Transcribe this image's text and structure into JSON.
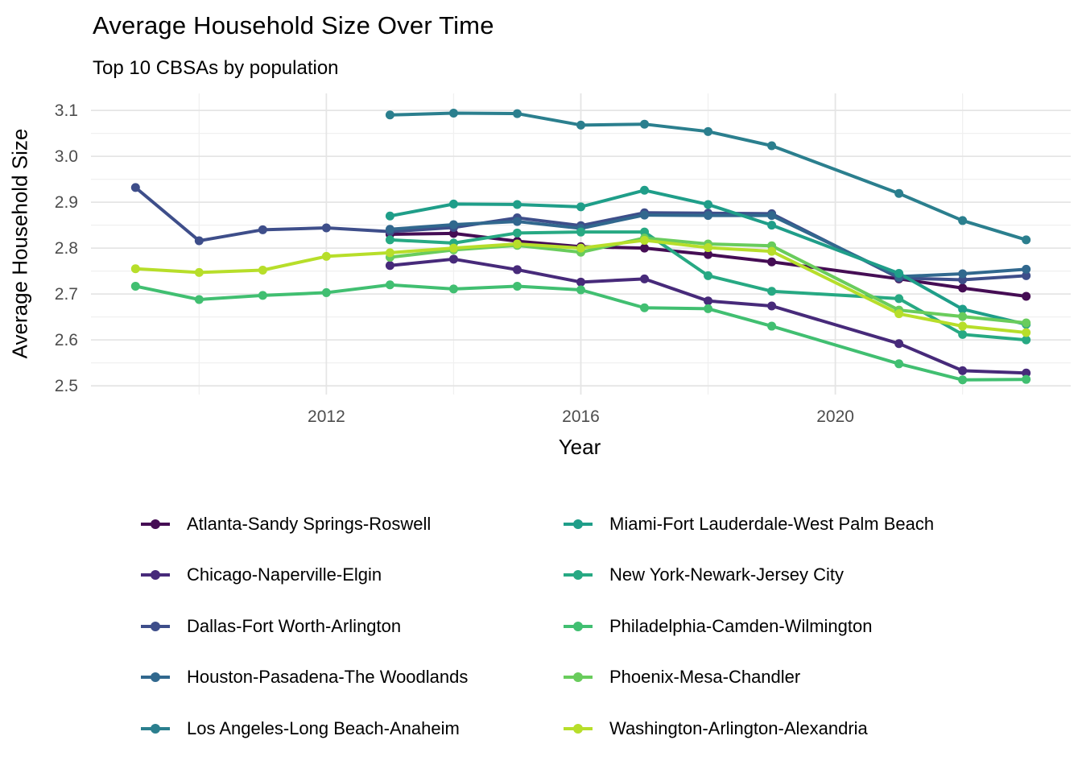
{
  "header": {
    "title": "Average Household Size Over Time",
    "subtitle": "Top 10 CBSAs by population"
  },
  "axes": {
    "x_label": "Year",
    "y_label": "Average Household Size",
    "x_tick_labels": [
      "2012",
      "2016",
      "2020"
    ],
    "y_tick_labels": [
      "2.5",
      "2.6",
      "2.7",
      "2.8",
      "2.9",
      "3.0",
      "3.1"
    ],
    "tick_color": "#4d4d4d",
    "grid_major_color": "#e5e5e5",
    "grid_minor_color": "#f0f0f0"
  },
  "chart_data": {
    "type": "line",
    "title": "Average Household Size Over Time",
    "subtitle": "Top 10 CBSAs by population",
    "xlabel": "Year",
    "ylabel": "Average Household Size",
    "xlim": [
      2008.3,
      2023.7
    ],
    "ylim": [
      2.481,
      3.137
    ],
    "x_ticks": [
      2012,
      2016,
      2020
    ],
    "y_ticks": [
      2.5,
      2.6,
      2.7,
      2.8,
      2.9,
      3.0,
      3.1
    ],
    "x_minor": [
      2010,
      2014,
      2018,
      2022
    ],
    "y_minor": [
      2.55,
      2.65,
      2.75,
      2.85,
      2.95,
      3.05
    ],
    "grid": true,
    "legend_position": "bottom-two-columns",
    "missing_years": [
      2020
    ],
    "series": [
      {
        "name": "Atlanta-Sandy Springs-Roswell",
        "color": "#450d54",
        "points": [
          [
            2013,
            2.83
          ],
          [
            2014,
            2.832
          ],
          [
            2015,
            2.815
          ],
          [
            2016,
            2.803
          ],
          [
            2017,
            2.8
          ],
          [
            2018,
            2.786
          ],
          [
            2019,
            2.77
          ],
          [
            2021,
            2.733
          ],
          [
            2022,
            2.713
          ],
          [
            2023,
            2.695
          ]
        ]
      },
      {
        "name": "Chicago-Naperville-Elgin",
        "color": "#472a7a",
        "points": [
          [
            2013,
            2.762
          ],
          [
            2014,
            2.776
          ],
          [
            2015,
            2.753
          ],
          [
            2016,
            2.726
          ],
          [
            2017,
            2.733
          ],
          [
            2018,
            2.685
          ],
          [
            2019,
            2.674
          ],
          [
            2021,
            2.592
          ],
          [
            2022,
            2.533
          ],
          [
            2023,
            2.528
          ]
        ]
      },
      {
        "name": "Dallas-Fort Worth-Arlington",
        "color": "#3e4e8a",
        "points": [
          [
            2009,
            2.932
          ],
          [
            2010,
            2.816
          ],
          [
            2011,
            2.84
          ],
          [
            2012,
            2.844
          ],
          [
            2013,
            2.836
          ],
          [
            2014,
            2.845
          ],
          [
            2015,
            2.866
          ],
          [
            2016,
            2.849
          ],
          [
            2017,
            2.877
          ],
          [
            2018,
            2.876
          ],
          [
            2019,
            2.875
          ],
          [
            2021,
            2.735
          ],
          [
            2022,
            2.731
          ],
          [
            2023,
            2.74
          ]
        ]
      },
      {
        "name": "Houston-Pasadena-The Woodlands",
        "color": "#31688e",
        "points": [
          [
            2013,
            2.841
          ],
          [
            2014,
            2.851
          ],
          [
            2015,
            2.858
          ],
          [
            2016,
            2.843
          ],
          [
            2017,
            2.872
          ],
          [
            2018,
            2.871
          ],
          [
            2019,
            2.871
          ],
          [
            2021,
            2.738
          ],
          [
            2022,
            2.744
          ],
          [
            2023,
            2.754
          ]
        ]
      },
      {
        "name": "Los Angeles-Long Beach-Anaheim",
        "color": "#2b7f8e",
        "points": [
          [
            2013,
            3.09
          ],
          [
            2014,
            3.094
          ],
          [
            2015,
            3.093
          ],
          [
            2016,
            3.068
          ],
          [
            2017,
            3.07
          ],
          [
            2018,
            3.054
          ],
          [
            2019,
            3.023
          ],
          [
            2021,
            2.919
          ],
          [
            2022,
            2.86
          ],
          [
            2023,
            2.818
          ]
        ]
      },
      {
        "name": "Miami-Fort Lauderdale-West Palm Beach",
        "color": "#1f9e89",
        "points": [
          [
            2013,
            2.87
          ],
          [
            2014,
            2.896
          ],
          [
            2015,
            2.895
          ],
          [
            2016,
            2.89
          ],
          [
            2017,
            2.926
          ],
          [
            2018,
            2.895
          ],
          [
            2019,
            2.85
          ],
          [
            2021,
            2.745
          ],
          [
            2022,
            2.667
          ],
          [
            2023,
            2.634
          ]
        ]
      },
      {
        "name": "New York-Newark-Jersey City",
        "color": "#27a983",
        "points": [
          [
            2013,
            2.818
          ],
          [
            2014,
            2.811
          ],
          [
            2015,
            2.833
          ],
          [
            2016,
            2.835
          ],
          [
            2017,
            2.835
          ],
          [
            2018,
            2.74
          ],
          [
            2019,
            2.706
          ],
          [
            2021,
            2.69
          ],
          [
            2022,
            2.612
          ],
          [
            2023,
            2.6
          ]
        ]
      },
      {
        "name": "Philadelphia-Camden-Wilmington",
        "color": "#41bf71",
        "points": [
          [
            2009,
            2.717
          ],
          [
            2010,
            2.688
          ],
          [
            2011,
            2.697
          ],
          [
            2012,
            2.703
          ],
          [
            2013,
            2.72
          ],
          [
            2014,
            2.711
          ],
          [
            2015,
            2.717
          ],
          [
            2016,
            2.709
          ],
          [
            2017,
            2.67
          ],
          [
            2018,
            2.668
          ],
          [
            2019,
            2.63
          ],
          [
            2021,
            2.548
          ],
          [
            2022,
            2.513
          ],
          [
            2023,
            2.514
          ]
        ]
      },
      {
        "name": "Phoenix-Mesa-Chandler",
        "color": "#69cc5c",
        "points": [
          [
            2013,
            2.78
          ],
          [
            2014,
            2.796
          ],
          [
            2015,
            2.806
          ],
          [
            2016,
            2.791
          ],
          [
            2017,
            2.822
          ],
          [
            2018,
            2.809
          ],
          [
            2019,
            2.805
          ],
          [
            2021,
            2.665
          ],
          [
            2022,
            2.651
          ],
          [
            2023,
            2.637
          ]
        ]
      },
      {
        "name": "Washington-Arlington-Alexandria",
        "color": "#b7de2a",
        "points": [
          [
            2009,
            2.755
          ],
          [
            2010,
            2.747
          ],
          [
            2011,
            2.752
          ],
          [
            2012,
            2.782
          ],
          [
            2013,
            2.79
          ],
          [
            2014,
            2.8
          ],
          [
            2015,
            2.809
          ],
          [
            2016,
            2.8
          ],
          [
            2017,
            2.817
          ],
          [
            2018,
            2.801
          ],
          [
            2019,
            2.793
          ],
          [
            2021,
            2.657
          ],
          [
            2022,
            2.63
          ],
          [
            2023,
            2.616
          ]
        ]
      }
    ]
  },
  "legend": {
    "columns": [
      [
        0,
        1,
        2,
        3,
        4
      ],
      [
        5,
        6,
        7,
        8,
        9
      ]
    ]
  }
}
